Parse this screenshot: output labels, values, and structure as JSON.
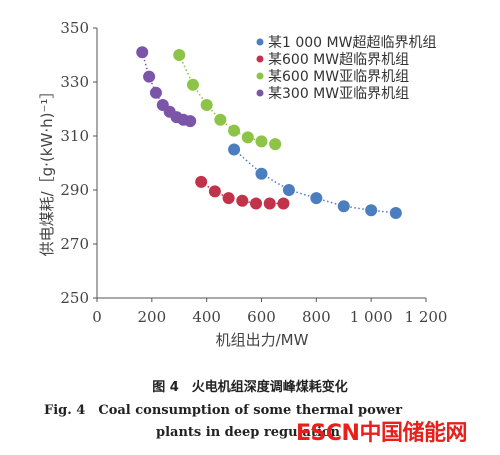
{
  "chart_data": {
    "type": "scatter",
    "ylabel": "供电煤耗/［g·(kW·h)⁻¹］",
    "xlabel": "机组出力/MW",
    "xlim": [
      0,
      1200
    ],
    "ylim": [
      250,
      350
    ],
    "x_ticks": [
      "0",
      "200",
      "400",
      "600",
      "800",
      "1 000",
      "1 200"
    ],
    "y_ticks": [
      "250",
      "270",
      "290",
      "310",
      "330",
      "350"
    ],
    "x_tick_values": [
      0,
      200,
      400,
      600,
      800,
      1000,
      1200
    ],
    "y_tick_values": [
      250,
      270,
      290,
      310,
      330,
      350
    ],
    "grid": false,
    "legend_position": "top-right",
    "series": [
      {
        "name": "某1 000 MW超超临界机组",
        "color": "#4a7ebf",
        "points": [
          [
            500,
            305
          ],
          [
            600,
            296
          ],
          [
            700,
            290
          ],
          [
            800,
            287
          ],
          [
            900,
            284
          ],
          [
            1000,
            282.5
          ],
          [
            1090,
            281.5
          ]
        ]
      },
      {
        "name": "某600 MW超临界机组",
        "color": "#c0334a",
        "points": [
          [
            380,
            293
          ],
          [
            430,
            289.5
          ],
          [
            480,
            287
          ],
          [
            530,
            286
          ],
          [
            580,
            285
          ],
          [
            630,
            285
          ],
          [
            680,
            285
          ]
        ]
      },
      {
        "name": "某600 MW亚临界机组",
        "color": "#8dc448",
        "points": [
          [
            300,
            340
          ],
          [
            350,
            329
          ],
          [
            400,
            321.5
          ],
          [
            450,
            316
          ],
          [
            500,
            312
          ],
          [
            550,
            309.5
          ],
          [
            600,
            308
          ],
          [
            650,
            307
          ]
        ]
      },
      {
        "name": "某300 MW亚临界机组",
        "color": "#7b55a8",
        "points": [
          [
            165,
            341
          ],
          [
            190,
            332
          ],
          [
            215,
            326
          ],
          [
            240,
            321.5
          ],
          [
            265,
            319
          ],
          [
            290,
            317
          ],
          [
            315,
            316
          ],
          [
            340,
            315.5
          ]
        ]
      }
    ]
  },
  "caption": {
    "cn": "图 4　火电机组深度调峰煤耗变化",
    "en_line1": "Fig. 4　Coal consumption of some thermal power",
    "en_line2": "plants in deep regulation"
  },
  "watermark": {
    "part1": "ESCN",
    "part2": "中国储能网"
  }
}
